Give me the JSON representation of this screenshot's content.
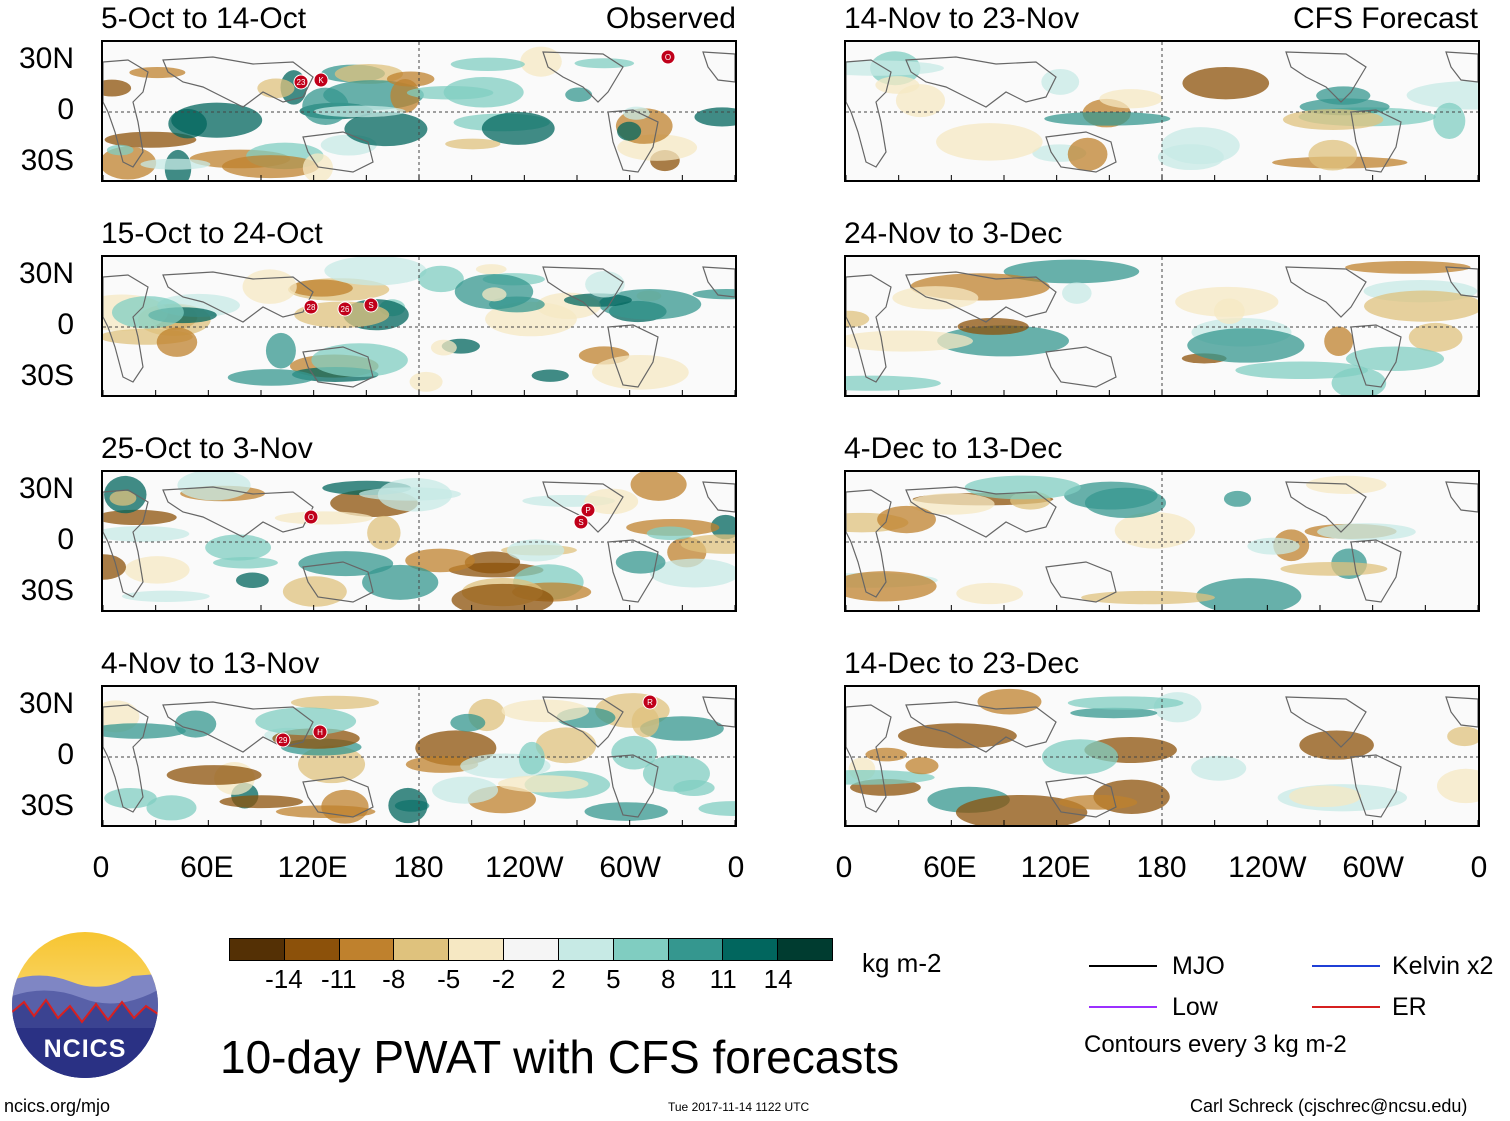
{
  "left_header": "Observed",
  "right_header": "CFS Forecast",
  "left_panels": [
    {
      "title": "5-Oct to 14-Oct",
      "storms": [
        "23",
        "K",
        "O"
      ]
    },
    {
      "title": "15-Oct to 24-Oct",
      "storms": [
        "28",
        "26",
        "S"
      ]
    },
    {
      "title": "25-Oct to 3-Nov",
      "storms": [
        "O",
        "P",
        "S"
      ]
    },
    {
      "title": "4-Nov to 13-Nov",
      "storms": [
        "29",
        "H",
        "R"
      ]
    }
  ],
  "right_panels": [
    {
      "title": "14-Nov to 23-Nov"
    },
    {
      "title": "24-Nov to 3-Dec"
    },
    {
      "title": "4-Dec to 13-Dec"
    },
    {
      "title": "14-Dec to 23-Dec"
    }
  ],
  "lat_labels": [
    "30N",
    "0",
    "30S"
  ],
  "lon_labels": [
    "0",
    "60E",
    "120E",
    "180",
    "120W",
    "60W",
    "0"
  ],
  "colorbar": {
    "colors": [
      "#543005",
      "#8c510a",
      "#bf812d",
      "#dfc27d",
      "#f6e8c3",
      "#f5f5f5",
      "#c7eae5",
      "#80cdc1",
      "#35978f",
      "#01665e",
      "#003c30"
    ],
    "ticks": [
      "-14",
      "-11",
      "-8",
      "-5",
      "-2",
      "2",
      "5",
      "8",
      "11",
      "14"
    ],
    "units": "kg m-2"
  },
  "legend": {
    "mjo": "MJO",
    "kelvin": "Kelvin x2",
    "low": "Low",
    "er": "ER",
    "contours": "Contours every 3 kg m-2",
    "colors": {
      "mjo": "#000000",
      "kelvin": "#1f3fd6",
      "low": "#9b30ff",
      "er": "#d62020"
    }
  },
  "logo_text": "NCICS",
  "main_title": "10-day PWAT with CFS forecasts",
  "website": "ncics.org/mjo",
  "timestamp": "Tue 2017-11-14 1122 UTC",
  "credit": "Carl Schreck (cjschrec@ncsu.edu)"
}
